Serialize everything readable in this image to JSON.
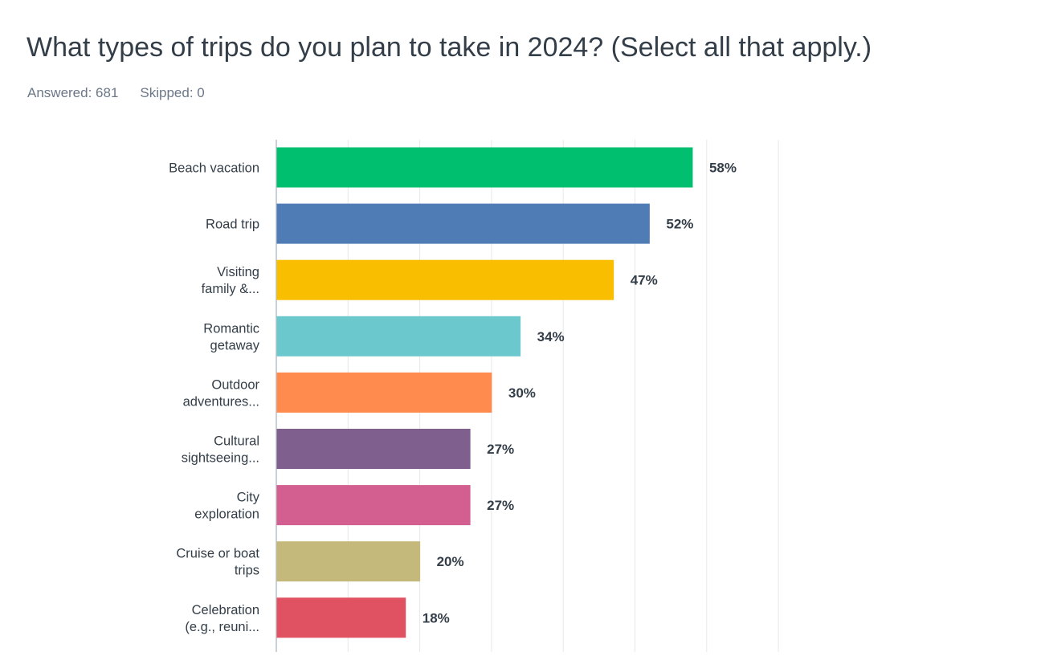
{
  "question": {
    "title": "What types of trips do you plan to take in 2024? (Select all that apply.)",
    "answered": "Answered: 681",
    "skipped": "Skipped: 0"
  },
  "chart_data": {
    "type": "bar",
    "orientation": "horizontal",
    "categories": [
      [
        "Beach vacation"
      ],
      [
        "Road trip"
      ],
      [
        "Visiting",
        "family &..."
      ],
      [
        "Romantic",
        "getaway"
      ],
      [
        "Outdoor",
        "adventures..."
      ],
      [
        "Cultural",
        "sightseeing..."
      ],
      [
        "City",
        "exploration"
      ],
      [
        "Cruise or boat",
        "trips"
      ],
      [
        "Celebration",
        "(e.g., reuni..."
      ]
    ],
    "values": [
      58,
      52,
      47,
      34,
      30,
      27,
      27,
      20,
      18
    ],
    "value_labels": [
      "58%",
      "52%",
      "47%",
      "34%",
      "30%",
      "27%",
      "27%",
      "20%",
      "18%"
    ],
    "colors": [
      "#00bf6f",
      "#507cb6",
      "#f9be00",
      "#6bc8cd",
      "#ff8b4f",
      "#7f5f8e",
      "#d25f90",
      "#c4b97a",
      "#e05162"
    ],
    "xlim": [
      0,
      100
    ],
    "grid": true,
    "legend": "none"
  }
}
